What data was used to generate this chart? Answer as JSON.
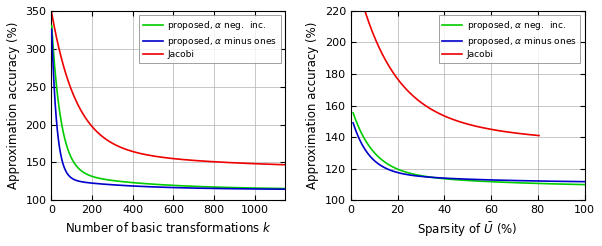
{
  "plot1": {
    "xlabel": "Number of basic transformations $k$",
    "ylabel": "Approximation accuracy (%)",
    "xlim": [
      0,
      1150
    ],
    "ylim": [
      100,
      350
    ],
    "yticks": [
      100,
      150,
      200,
      250,
      300,
      350
    ],
    "xticks": [
      0,
      200,
      400,
      600,
      800,
      1000
    ]
  },
  "plot2": {
    "xlabel": "Sparsity of $\\bar{U}$ (%)",
    "ylabel": "Approximation accuracy (%)",
    "xlim": [
      0,
      100
    ],
    "ylim": [
      100,
      220
    ],
    "yticks": [
      100,
      120,
      140,
      160,
      180,
      200,
      220
    ],
    "xticks": [
      0,
      20,
      40,
      60,
      80,
      100
    ]
  },
  "colors": {
    "green": "#00CC00",
    "blue": "#0000CC",
    "red": "#EE0000"
  },
  "legend_labels": [
    "proposed, $\\alpha$ neg.  inc.",
    "proposed, $\\alpha$ minus ones",
    "Jacobi"
  ],
  "linewidth": 1.2,
  "font_size": 8.5,
  "grid_color": "#b0b0b0"
}
